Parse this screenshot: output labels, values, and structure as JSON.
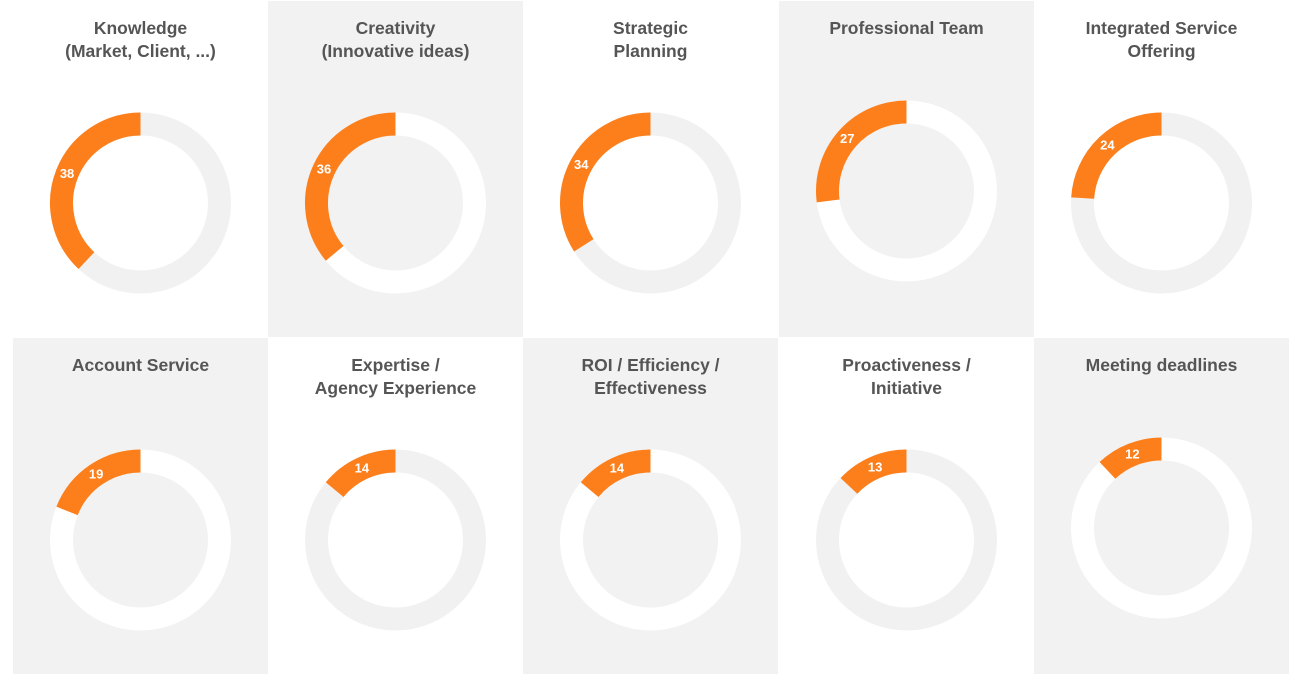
{
  "colors": {
    "accent": "#fc7f1c",
    "track_on_white": "#f1f1f1",
    "track_on_gray": "#ffffff",
    "panel_gray": "#f2f2f2",
    "text": "#555555",
    "value_text": "#ffffff"
  },
  "chart_data": [
    {
      "type": "pie",
      "style": "donut",
      "title_lines": [
        "Knowledge",
        "(Market, Client, ...)"
      ],
      "value": 38,
      "max": 100
    },
    {
      "type": "pie",
      "style": "donut",
      "title_lines": [
        "Creativity",
        "(Innovative ideas)"
      ],
      "value": 36,
      "max": 100
    },
    {
      "type": "pie",
      "style": "donut",
      "title_lines": [
        "Strategic",
        "Planning"
      ],
      "value": 34,
      "max": 100
    },
    {
      "type": "pie",
      "style": "donut",
      "title_lines": [
        "Professional Team"
      ],
      "value": 27,
      "max": 100
    },
    {
      "type": "pie",
      "style": "donut",
      "title_lines": [
        "Integrated Service",
        "Offering"
      ],
      "value": 24,
      "max": 100
    },
    {
      "type": "pie",
      "style": "donut",
      "title_lines": [
        "Account Service"
      ],
      "value": 19,
      "max": 100
    },
    {
      "type": "pie",
      "style": "donut",
      "title_lines": [
        "Expertise /",
        "Agency Experience"
      ],
      "value": 14,
      "max": 100
    },
    {
      "type": "pie",
      "style": "donut",
      "title_lines": [
        "ROI / Efficiency /",
        "Effectiveness"
      ],
      "value": 14,
      "max": 100
    },
    {
      "type": "pie",
      "style": "donut",
      "title_lines": [
        "Proactiveness /",
        "Initiative"
      ],
      "value": 13,
      "max": 100
    },
    {
      "type": "pie",
      "style": "donut",
      "title_lines": [
        "Meeting deadlines"
      ],
      "value": 12,
      "max": 100
    }
  ]
}
